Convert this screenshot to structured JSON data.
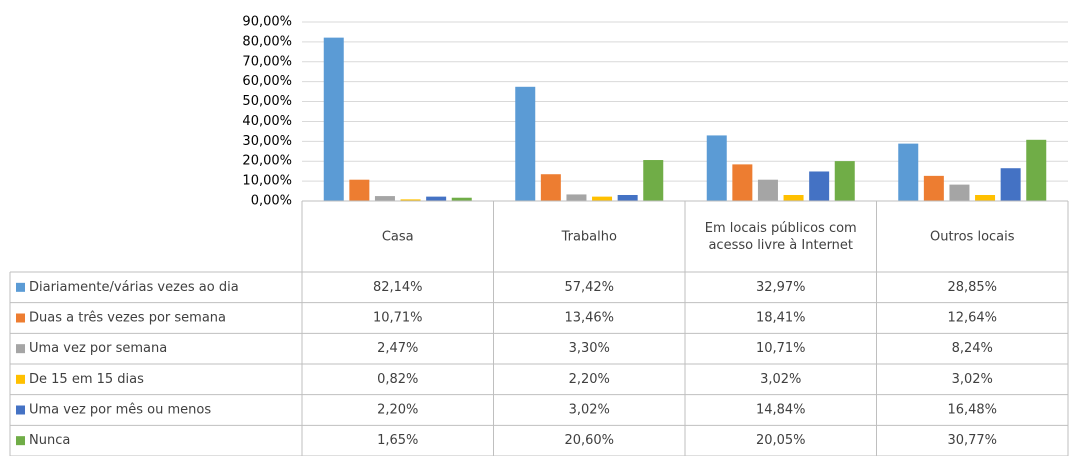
{
  "chart_data": {
    "type": "bar",
    "categories": [
      "Casa",
      "Trabalho",
      "Em locais públicos com acesso livre à Internet",
      "Outros locais"
    ],
    "series": [
      {
        "name": "Diariamente/várias vezes ao dia",
        "color": "#5b9bd5",
        "values": [
          82.14,
          57.42,
          32.97,
          28.85
        ],
        "value_labels": [
          "82,14%",
          "57,42%",
          "32,97%",
          "28,85%"
        ]
      },
      {
        "name": "Duas a três vezes por semana",
        "color": "#ed7d31",
        "values": [
          10.71,
          13.46,
          18.41,
          12.64
        ],
        "value_labels": [
          "10,71%",
          "13,46%",
          "18,41%",
          "12,64%"
        ]
      },
      {
        "name": "Uma vez por semana",
        "color": "#a5a5a5",
        "values": [
          2.47,
          3.3,
          10.71,
          8.24
        ],
        "value_labels": [
          "2,47%",
          "3,30%",
          "10,71%",
          "8,24%"
        ]
      },
      {
        "name": "De 15 em 15 dias",
        "color": "#ffc000",
        "values": [
          0.82,
          2.2,
          3.02,
          3.02
        ],
        "value_labels": [
          "0,82%",
          "2,20%",
          "3,02%",
          "3,02%"
        ]
      },
      {
        "name": "Uma vez por mês ou menos",
        "color": "#4472c4",
        "values": [
          2.2,
          3.02,
          14.84,
          16.48
        ],
        "value_labels": [
          "2,20%",
          "3,02%",
          "14,84%",
          "16,48%"
        ]
      },
      {
        "name": "Nunca",
        "color": "#70ad47",
        "values": [
          1.65,
          20.6,
          20.05,
          30.77
        ],
        "value_labels": [
          "1,65%",
          "20,60%",
          "20,05%",
          "30,77%"
        ]
      }
    ],
    "ylim": [
      0,
      90
    ],
    "yticks": [
      {
        "value": 0,
        "label": "0,00%"
      },
      {
        "value": 10,
        "label": "10,00%"
      },
      {
        "value": 20,
        "label": "20,00%"
      },
      {
        "value": 30,
        "label": "30,00%"
      },
      {
        "value": 40,
        "label": "40,00%"
      },
      {
        "value": 50,
        "label": "50,00%"
      },
      {
        "value": 60,
        "label": "60,00%"
      },
      {
        "value": 70,
        "label": "70,00%"
      },
      {
        "value": 80,
        "label": "80,00%"
      },
      {
        "value": 90,
        "label": "90,00%"
      }
    ],
    "grid": true
  }
}
